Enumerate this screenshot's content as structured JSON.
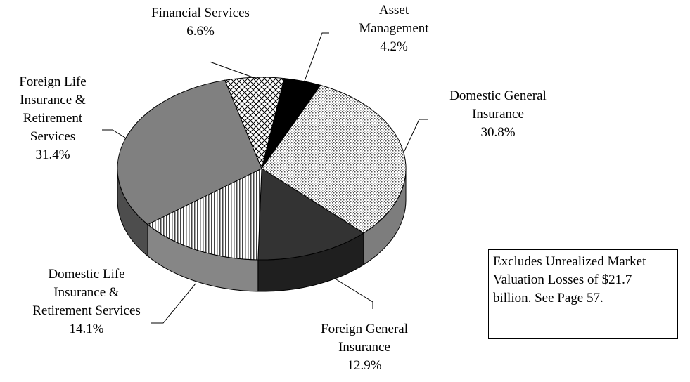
{
  "chart_data": {
    "type": "pie3d",
    "categories": [
      "Asset Management",
      "Domestic General Insurance",
      "Foreign General Insurance",
      "Domestic Life Insurance & Retirement Services",
      "Foreign Life Insurance & Retirement Services",
      "Financial Services"
    ],
    "values": [
      4.2,
      30.8,
      12.9,
      14.1,
      31.4,
      6.6
    ],
    "value_labels": [
      "4.2%",
      "30.8%",
      "12.9%",
      "14.1%",
      "31.4%",
      "6.6%"
    ],
    "colors": [
      "#000000",
      "#d0d0d0",
      "#333333",
      "#e0e0e0",
      "#808080",
      "#ffffff"
    ],
    "patterns": [
      "solid",
      "dots",
      "solid",
      "vertical",
      "solid",
      "crosshatch"
    ],
    "annotation": "Excludes Unrealized Market Valuation Losses of $21.7 billion. See Page 57."
  }
}
